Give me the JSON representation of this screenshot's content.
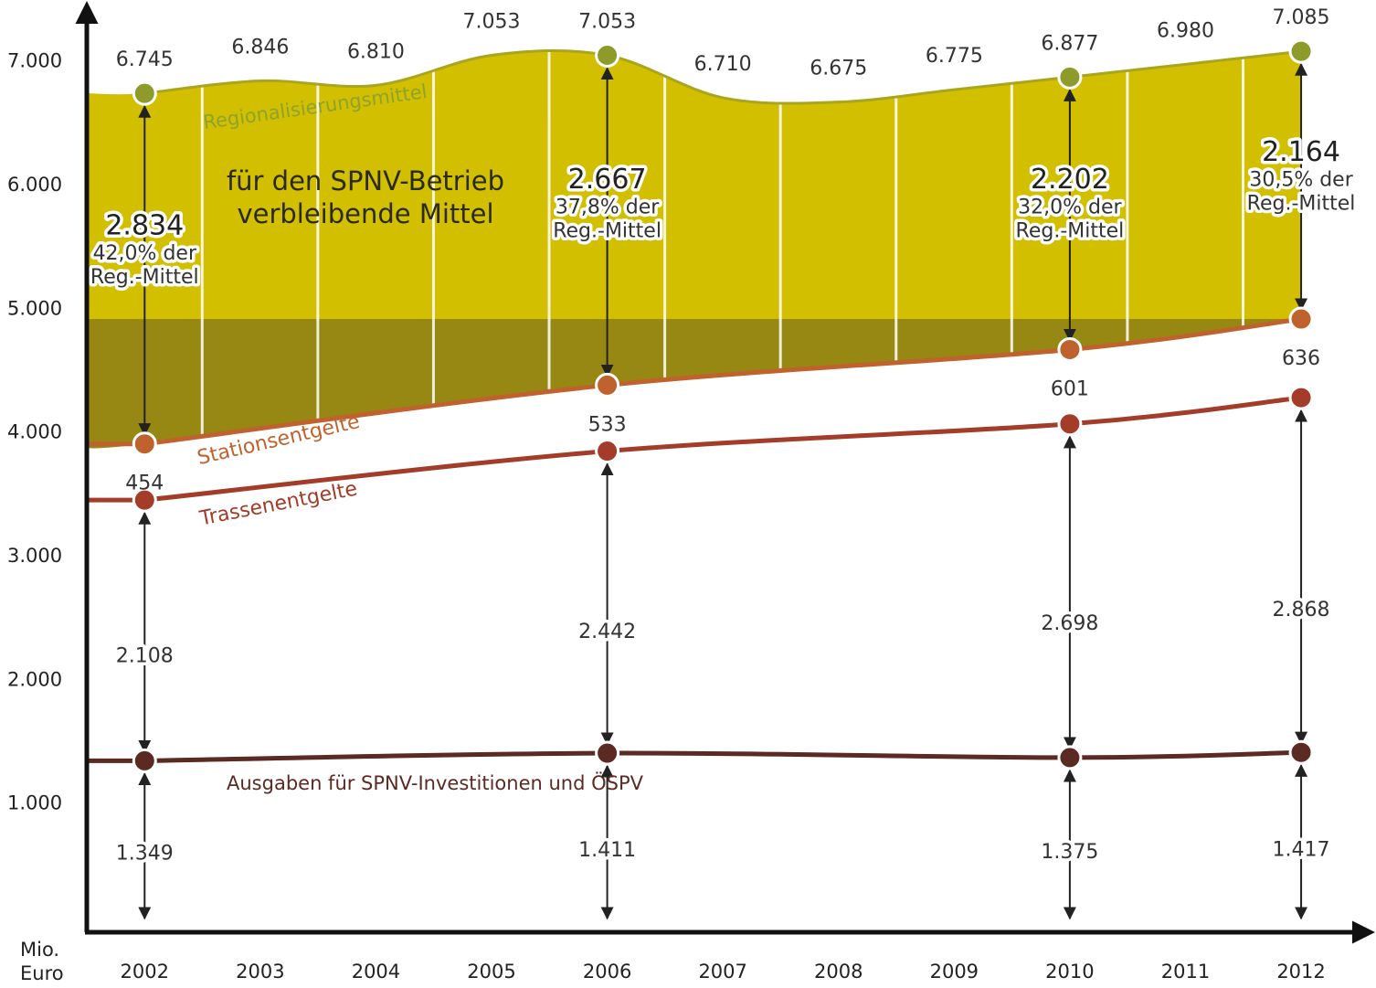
{
  "chart_data": {
    "type": "stacked-line",
    "y_axis_label": [
      "Mio.",
      "Euro"
    ],
    "ylim": [
      0,
      7500
    ],
    "yticks": [
      {
        "value": 1000,
        "label": "1.000"
      },
      {
        "value": 2000,
        "label": "2.000"
      },
      {
        "value": 3000,
        "label": "3.000"
      },
      {
        "value": 4000,
        "label": "4.000"
      },
      {
        "value": 5000,
        "label": "5.000"
      },
      {
        "value": 6000,
        "label": "6.000"
      },
      {
        "value": 7000,
        "label": "7.000"
      }
    ],
    "xlim": [
      2001.5,
      2012.6
    ],
    "x": [
      2002,
      2003,
      2004,
      2005,
      2006,
      2007,
      2008,
      2009,
      2010,
      2011,
      2012
    ],
    "grid": true,
    "series": [
      {
        "name": "Regionalisierungsmittel",
        "color": "#d2bf00",
        "values": [
          6745,
          6846,
          6810,
          7053,
          7053,
          6710,
          6675,
          6775,
          6877,
          6980,
          7085
        ],
        "value_labels": [
          "6.745",
          "6.846",
          "6.810",
          "7.053",
          "7.053",
          "6.710",
          "6.675",
          "6.775",
          "6.877",
          "6.980",
          "7.085"
        ]
      }
    ],
    "breakdown": {
      "x": [
        2002,
        2006,
        2010,
        2012
      ],
      "series": [
        {
          "name": "Ausgaben für SPNV-Investitionen und ÖSPV",
          "color": "#5b2a22",
          "values": [
            1349,
            1411,
            1375,
            1417
          ],
          "value_labels": [
            "1.349",
            "1.411",
            "1.375",
            "1.417"
          ]
        },
        {
          "name": "Trassenentgelte",
          "color": "#a33d2a",
          "values": [
            2108,
            2442,
            2698,
            2868
          ],
          "value_labels": [
            "2.108",
            "2.442",
            "2.698",
            "2.868"
          ]
        },
        {
          "name": "Stationsentgelte",
          "color": "#c0622e",
          "values": [
            454,
            533,
            601,
            636
          ]
        },
        {
          "name": "für den SPNV-Betrieb verbleibende Mittel",
          "color": "#2a2a20",
          "values": [
            2834,
            2667,
            2202,
            2164
          ],
          "value_labels": [
            "2.834",
            "2.667",
            "2.202",
            "2.164"
          ],
          "share_labels": [
            [
              "42,0% der",
              "Reg.-Mittel"
            ],
            [
              "37,8% der",
              "Reg.-Mittel"
            ],
            [
              "32,0% der",
              "Reg.-Mittel"
            ],
            [
              "30,5% der",
              "Reg.-Mittel"
            ]
          ]
        }
      ]
    }
  }
}
